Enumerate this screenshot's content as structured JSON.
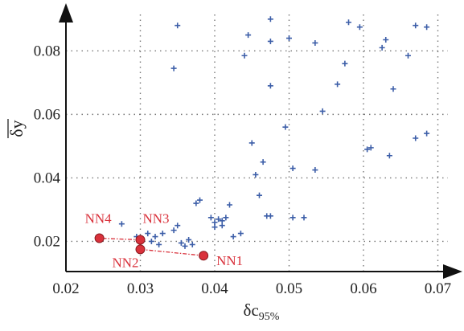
{
  "chart_data": {
    "type": "scatter",
    "xlabel": "δc",
    "xlabel_sub": "95%",
    "ylabel": "δy",
    "xlim": [
      0.02,
      0.072
    ],
    "ylim": [
      0.0105,
      0.094
    ],
    "x_ticks": [
      0.02,
      0.03,
      0.04,
      0.05,
      0.06,
      0.07
    ],
    "x_tick_labels": [
      "0.02",
      "0.03",
      "0.04",
      "0.05",
      "0.06",
      "0.07"
    ],
    "y_ticks": [
      0.02,
      0.04,
      0.06,
      0.08
    ],
    "y_tick_labels": [
      "0.02",
      "0.04",
      "0.06",
      "0.08"
    ],
    "grid": true,
    "colors": {
      "points": "#3c5ea8",
      "highlight": "#d9313b",
      "axis": "#111111",
      "grid": "#777777"
    },
    "series": [
      {
        "marker": "plus",
        "points": [
          [
            0.0275,
            0.0255
          ],
          [
            0.0295,
            0.0215
          ],
          [
            0.031,
            0.0225
          ],
          [
            0.0315,
            0.02
          ],
          [
            0.032,
            0.0215
          ],
          [
            0.0325,
            0.019
          ],
          [
            0.033,
            0.0225
          ],
          [
            0.0345,
            0.0235
          ],
          [
            0.035,
            0.025
          ],
          [
            0.0355,
            0.0195
          ],
          [
            0.036,
            0.0185
          ],
          [
            0.0365,
            0.0205
          ],
          [
            0.037,
            0.019
          ],
          [
            0.0375,
            0.032
          ],
          [
            0.038,
            0.033
          ],
          [
            0.0395,
            0.0275
          ],
          [
            0.04,
            0.026
          ],
          [
            0.04,
            0.0245
          ],
          [
            0.0405,
            0.027
          ],
          [
            0.041,
            0.0265
          ],
          [
            0.0415,
            0.0275
          ],
          [
            0.041,
            0.025
          ],
          [
            0.042,
            0.0315
          ],
          [
            0.0425,
            0.0215
          ],
          [
            0.0435,
            0.0225
          ],
          [
            0.0455,
            0.041
          ],
          [
            0.046,
            0.0345
          ],
          [
            0.0465,
            0.045
          ],
          [
            0.047,
            0.028
          ],
          [
            0.0475,
            0.028
          ],
          [
            0.0495,
            0.056
          ],
          [
            0.045,
            0.051
          ],
          [
            0.0505,
            0.043
          ],
          [
            0.0505,
            0.0275
          ],
          [
            0.052,
            0.0275
          ],
          [
            0.0535,
            0.0425
          ],
          [
            0.0545,
            0.061
          ],
          [
            0.0565,
            0.0695
          ],
          [
            0.0575,
            0.076
          ],
          [
            0.0605,
            0.049
          ],
          [
            0.061,
            0.0495
          ],
          [
            0.0635,
            0.047
          ],
          [
            0.064,
            0.068
          ],
          [
            0.067,
            0.0525
          ],
          [
            0.0685,
            0.054
          ],
          [
            0.0345,
            0.0745
          ],
          [
            0.035,
            0.088
          ],
          [
            0.044,
            0.0785
          ],
          [
            0.0445,
            0.085
          ],
          [
            0.0475,
            0.069
          ],
          [
            0.0475,
            0.09
          ],
          [
            0.0475,
            0.083
          ],
          [
            0.05,
            0.084
          ],
          [
            0.0535,
            0.0825
          ],
          [
            0.058,
            0.089
          ],
          [
            0.0595,
            0.0875
          ],
          [
            0.0625,
            0.081
          ],
          [
            0.063,
            0.0835
          ],
          [
            0.066,
            0.0785
          ],
          [
            0.067,
            0.088
          ],
          [
            0.0685,
            0.0875
          ]
        ]
      },
      {
        "marker": "circle",
        "connected": true,
        "points": [
          {
            "label": "NN1",
            "x": 0.0385,
            "y": 0.0155
          },
          {
            "label": "NN2",
            "x": 0.03,
            "y": 0.0175
          },
          {
            "label": "NN3",
            "x": 0.03,
            "y": 0.0205
          },
          {
            "label": "NN4",
            "x": 0.0245,
            "y": 0.021
          }
        ]
      }
    ]
  }
}
